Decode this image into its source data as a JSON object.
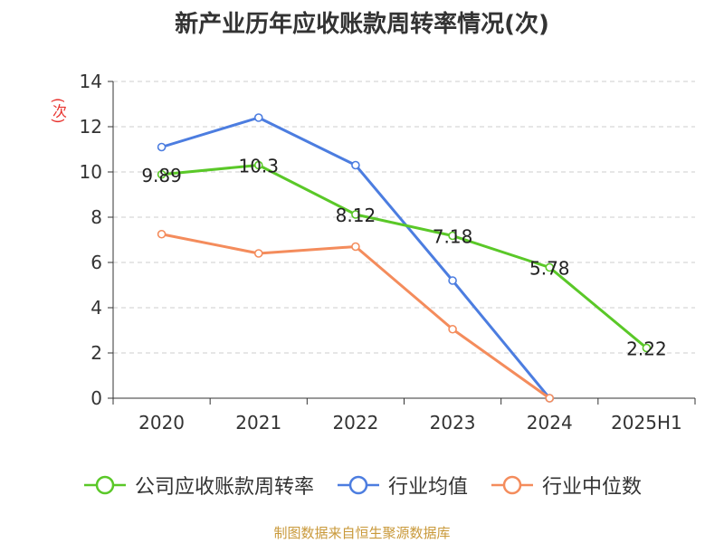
{
  "chart_data": {
    "type": "line",
    "title": "新产业历年应收账款周转率情况(次)",
    "ylabel": "(次)",
    "categories": [
      "2020",
      "2021",
      "2022",
      "2023",
      "2024",
      "2025H1"
    ],
    "ylim": [
      0,
      14
    ],
    "yticks": [
      0,
      2,
      4,
      6,
      8,
      10,
      12,
      14
    ],
    "grid": true,
    "legend_position": "bottom",
    "series": [
      {
        "name": "公司应收账款周转率",
        "color": "#5ac828",
        "values": [
          9.89,
          10.3,
          8.12,
          7.18,
          5.78,
          2.22
        ],
        "labels": [
          "9.89",
          "10.3",
          "8.12",
          "7.18",
          "5.78",
          "2.22"
        ]
      },
      {
        "name": "行业均值",
        "color": "#4c7de0",
        "values": [
          11.1,
          12.4,
          10.3,
          5.2,
          0,
          null
        ]
      },
      {
        "name": "行业中位数",
        "color": "#f48c5c",
        "values": [
          7.25,
          6.4,
          6.7,
          3.05,
          0,
          null
        ]
      }
    ]
  },
  "source_text": "制图数据来自恒生聚源数据库"
}
